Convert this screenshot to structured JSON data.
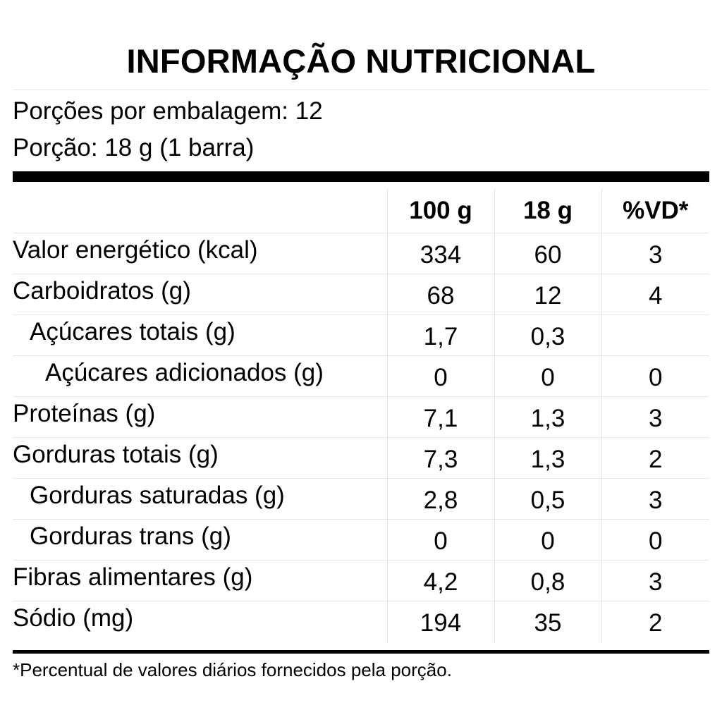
{
  "title": "INFORMAÇÃO NUTRICIONAL",
  "servings_per_package": "Porções por embalagem: 12",
  "portion": "Porção: 18 g (1 barra)",
  "columns": [
    "100 g",
    "18 g",
    "%VD*"
  ],
  "rows": [
    {
      "name": "Valor energético (kcal)",
      "indent": 0,
      "per100": "334",
      "per18": "60",
      "vd": "3"
    },
    {
      "name": "Carboidratos (g)",
      "indent": 0,
      "per100": "68",
      "per18": "12",
      "vd": "4"
    },
    {
      "name": "Açúcares totais (g)",
      "indent": 1,
      "per100": "1,7",
      "per18": "0,3",
      "vd": ""
    },
    {
      "name": "Açúcares adicionados (g)",
      "indent": 2,
      "per100": "0",
      "per18": "0",
      "vd": "0"
    },
    {
      "name": "Proteínas (g)",
      "indent": 0,
      "per100": "7,1",
      "per18": "1,3",
      "vd": "3"
    },
    {
      "name": "Gorduras totais (g)",
      "indent": 0,
      "per100": "7,3",
      "per18": "1,3",
      "vd": "2"
    },
    {
      "name": "Gorduras saturadas (g)",
      "indent": 1,
      "per100": "2,8",
      "per18": "0,5",
      "vd": "3"
    },
    {
      "name": "Gorduras trans (g)",
      "indent": 1,
      "per100": "0",
      "per18": "0",
      "vd": "0"
    },
    {
      "name": "Fibras alimentares (g)",
      "indent": 0,
      "per100": "4,2",
      "per18": "0,8",
      "vd": "3"
    },
    {
      "name": "Sódio (mg)",
      "indent": 0,
      "per100": "194",
      "per18": "35",
      "vd": "2"
    }
  ],
  "footnote": "*Percentual de valores diários fornecidos pela porção."
}
